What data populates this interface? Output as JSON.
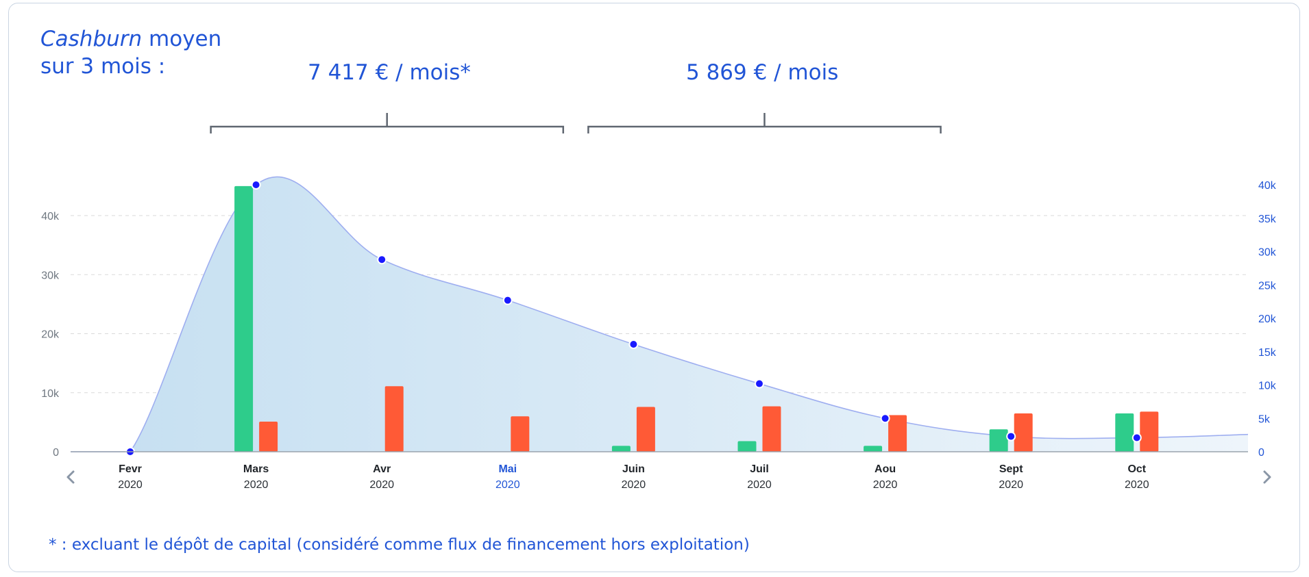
{
  "header": {
    "label_italic": "Cashburn",
    "label_rest": "moyen",
    "label_line2": "sur 3 mois :",
    "avg_1": "7 417 € / mois*",
    "avg_2": "5 869 € / mois"
  },
  "footnote": "* : excluant le dépôt de capital (considéré comme flux de financement hors exploitation)",
  "chart_data": {
    "type": "bar",
    "categories": [
      {
        "month": "Fevr",
        "year": "2020"
      },
      {
        "month": "Mars",
        "year": "2020"
      },
      {
        "month": "Avr",
        "year": "2020"
      },
      {
        "month": "Mai",
        "year": "2020"
      },
      {
        "month": "Juin",
        "year": "2020"
      },
      {
        "month": "Juil",
        "year": "2020"
      },
      {
        "month": "Aou",
        "year": "2020"
      },
      {
        "month": "Sept",
        "year": "2020"
      },
      {
        "month": "Oct",
        "year": "2020"
      }
    ],
    "selected_category": "Mai",
    "series": [
      {
        "type": "bar",
        "axis": "left",
        "color": "#2ecc8b",
        "values": [
          0,
          45000,
          0,
          0,
          1000,
          1800,
          1000,
          3800,
          6500
        ]
      },
      {
        "type": "bar",
        "axis": "left",
        "color": "#ff5a36",
        "values": [
          0,
          5100,
          11100,
          6000,
          7600,
          7700,
          6200,
          6500,
          6800
        ]
      },
      {
        "type": "area",
        "axis": "right",
        "color": "#1a1aff",
        "values": [
          0,
          40000,
          28800,
          22700,
          16100,
          10200,
          5000,
          2300,
          2100
        ]
      }
    ],
    "area_tail_value": 2600,
    "y_left": {
      "ticks": [
        0,
        10000,
        20000,
        30000,
        40000
      ],
      "tick_labels": [
        "0",
        "10k",
        "20k",
        "30k",
        "40k"
      ],
      "max": 45000
    },
    "y_right": {
      "ticks": [
        0,
        5000,
        10000,
        15000,
        20000,
        25000,
        30000,
        35000,
        40000
      ],
      "tick_labels": [
        "0",
        "5k",
        "10k",
        "15k",
        "20k",
        "25k",
        "30k",
        "35k",
        "40k"
      ],
      "max": 40000
    },
    "grid": "horizontal-dashed",
    "brackets": [
      {
        "from_month": "Mars",
        "to_month": "Mai",
        "label": "7 417 € / mois*"
      },
      {
        "from_month": "Juin",
        "to_month": "Aou",
        "label": "5 869 € / mois"
      }
    ]
  }
}
